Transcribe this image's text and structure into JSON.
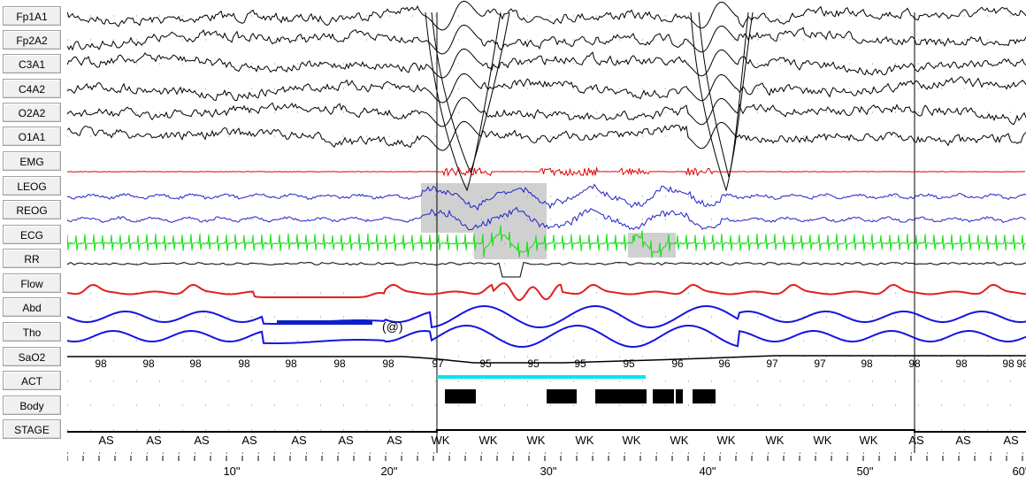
{
  "channels": [
    "Fp1A1",
    "Fp2A2",
    "C3A1",
    "C4A2",
    "O2A2",
    "O1A1",
    "EMG",
    "LEOG",
    "REOG",
    "ECG",
    "RR",
    "Flow",
    "Abd",
    "Tho",
    "SaO2",
    "ACT",
    "Body",
    "STAGE"
  ],
  "trace_colors": {
    "eeg": "#000000",
    "emg": "#e00000",
    "eog": "#2020c8",
    "ecg": "#10e010",
    "rr": "#000000",
    "flow": "#e02020",
    "resp": "#1414e0",
    "event_marker": "#0a20c8",
    "desat_marker": "#00e5f0",
    "arousal_shading": "#d0d0d0"
  },
  "sao2_values": [
    "98",
    "98",
    "98",
    "98",
    "98",
    "98",
    "98",
    "97",
    "95",
    "95",
    "95",
    "95",
    "96",
    "96",
    "97",
    "97",
    "98",
    "98",
    "98",
    "98",
    "98"
  ],
  "annotation": "(@)",
  "stages": [
    "AS",
    "AS",
    "AS",
    "AS",
    "AS",
    "AS",
    "AS",
    "WK",
    "WK",
    "WK",
    "WK",
    "WK",
    "WK",
    "WK",
    "WK",
    "WK",
    "WK",
    "AS",
    "AS",
    "AS"
  ],
  "time_ticks": [
    "10\"",
    "20\"",
    "30\"",
    "40\"",
    "50\"",
    "60\""
  ]
}
